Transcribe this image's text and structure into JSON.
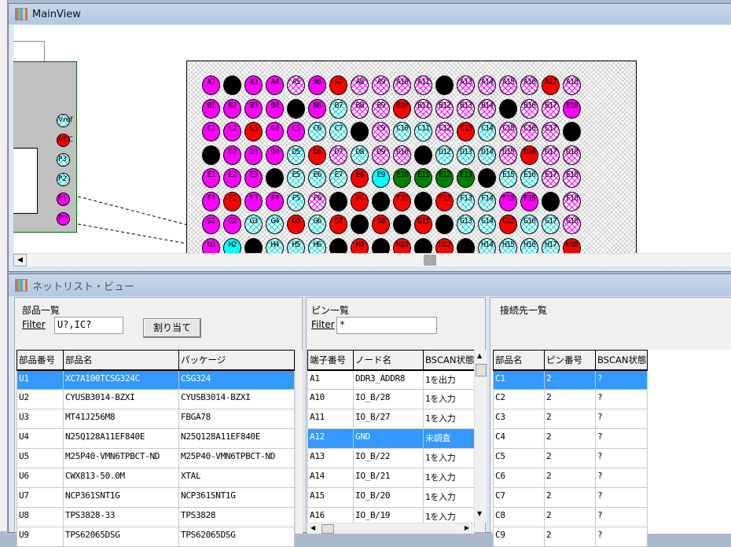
{
  "main_view": {
    "title": "MainView",
    "component_pins": [
      {
        "label": "Vref",
        "style": "hc"
      },
      {
        "label": "VCC",
        "style": "red"
      },
      {
        "label": "P3",
        "style": "hc"
      },
      {
        "label": "P2",
        "style": "hc"
      },
      {
        "label": "P1",
        "style": "magenta"
      },
      {
        "label": "P0",
        "style": "magenta"
      }
    ],
    "bga": {
      "rows": [
        "A",
        "B",
        "C",
        "D",
        "E",
        "F",
        "G",
        "H"
      ],
      "columns": 18,
      "legend_codes": {
        "M": "#ff00ff",
        "K": "#000000",
        "R": "#ff0000",
        "C": "#00ffff",
        "G": "#008000",
        "m": "magenta-hatch",
        "c": "cyan-hatch"
      },
      "states": [
        "MKMMmMRmmmmKmmmmRm",
        "MMMMKMcmmRmmmmKmmM",
        "MMRMMccKmccmRcmmmK",
        "KMMMcRmcmmKcccmRmm",
        "MMMKcccRCGGGGKccmm",
        "MRMMcmKRKRKRccMMKm",
        "MMccRcRKRKRKccRccm",
        "MCKcccKRKRKRKccccR"
      ]
    }
  },
  "netlist_view": {
    "title": "ネットリスト・ビュー",
    "parts": {
      "heading": "部品一覧",
      "filter_label": "Filter",
      "filter_value": "U?,IC?",
      "assign_button": "割り当て",
      "columns": [
        "部品番号",
        "部品名",
        "パッケージ"
      ],
      "rows": [
        [
          "U1",
          "XC7A100TCSG324C",
          "CSG324"
        ],
        [
          "U2",
          "CYUSB3014-BZXI",
          "CYUSB3014-BZXI"
        ],
        [
          "U3",
          "MT41J256M8",
          "FBGA78"
        ],
        [
          "U4",
          "N25Q128A11EF840E",
          "N25Q128A11EF840E"
        ],
        [
          "U5",
          "M25P40-VMN6TPBCT-ND",
          "M25P40-VMN6TPBCT-ND"
        ],
        [
          "U6",
          "CWX813-50.0M",
          "XTAL"
        ],
        [
          "U7",
          "NCP361SNT1G",
          "NCP361SNT1G"
        ],
        [
          "U8",
          "TPS3828-33",
          "TPS3828"
        ],
        [
          "U9",
          "TPS62065DSG",
          "TPS62065DSG"
        ]
      ],
      "selected_row": 0
    },
    "pins": {
      "heading": "ピン一覧",
      "filter_label": "Filter",
      "filter_value": "*",
      "columns": [
        "端子番号",
        "ノード名",
        "BSCAN状態"
      ],
      "rows": [
        [
          "A1",
          "DDR3_ADDR8",
          "1を出力"
        ],
        [
          "A10",
          "IO_B/28",
          "1を入力"
        ],
        [
          "A11",
          "IO_B/27",
          "1を入力"
        ],
        [
          "A12",
          "GND",
          "未調査"
        ],
        [
          "A13",
          "IO_B/22",
          "1を入力"
        ],
        [
          "A14",
          "IO_B/21",
          "1を入力"
        ],
        [
          "A15",
          "IO_B/20",
          "1を入力"
        ],
        [
          "A16",
          "IO_B/19",
          "1を入力"
        ]
      ],
      "selected_row": 3
    },
    "connections": {
      "heading": "接続先一覧",
      "columns": [
        "部品名",
        "ピン番号",
        "BSCAN状態"
      ],
      "rows": [
        [
          "C1",
          "2",
          "?"
        ],
        [
          "C2",
          "2",
          "?"
        ],
        [
          "C3",
          "2",
          "?"
        ],
        [
          "C4",
          "2",
          "?"
        ],
        [
          "C5",
          "2",
          "?"
        ],
        [
          "C6",
          "2",
          "?"
        ],
        [
          "C7",
          "2",
          "?"
        ],
        [
          "C8",
          "2",
          "?"
        ],
        [
          "C9",
          "2",
          "?"
        ]
      ],
      "selected_row": 0
    }
  },
  "colors": {
    "selection": "#3399ff",
    "accent_green": "#006400"
  }
}
